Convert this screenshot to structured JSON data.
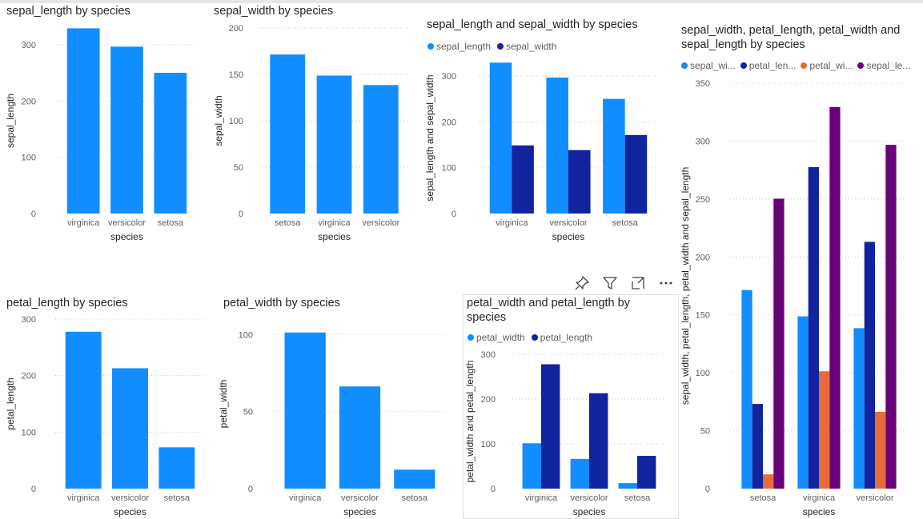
{
  "colors": {
    "c1": "#118DFF",
    "c2": "#12239E",
    "c3": "#E66C37",
    "c4": "#6B007B"
  },
  "header_icons": [
    "pin-icon",
    "filter-icon",
    "focus-mode-icon",
    "more-options-icon"
  ],
  "chart_data": [
    {
      "id": "v1",
      "type": "bar",
      "title": "sepal_length by species",
      "xlabel": "species",
      "ylabel": "sepal_length",
      "categories": [
        "virginica",
        "versicolor",
        "setosa"
      ],
      "series": [
        {
          "name": "sepal_length",
          "values": [
            329.4,
            296.8,
            250.3
          ]
        }
      ],
      "ylim": [
        0,
        330
      ],
      "yticks": [
        0,
        100,
        200,
        300
      ],
      "grid": true
    },
    {
      "id": "v2",
      "type": "bar",
      "title": "sepal_width by species",
      "xlabel": "species",
      "ylabel": "sepal_width",
      "categories": [
        "setosa",
        "virginica",
        "versicolor"
      ],
      "series": [
        {
          "name": "sepal_width",
          "values": [
            171.4,
            148.7,
            138.5
          ]
        }
      ],
      "ylim": [
        0,
        200
      ],
      "yticks": [
        0,
        50,
        100,
        150,
        200
      ],
      "grid": true
    },
    {
      "id": "v3",
      "type": "bar",
      "title": "sepal_length and sepal_width by species",
      "xlabel": "species",
      "ylabel": "sepal_length and sepal_width",
      "categories": [
        "virginica",
        "versicolor",
        "setosa"
      ],
      "series": [
        {
          "name": "sepal_length",
          "values": [
            329.4,
            296.8,
            250.3
          ]
        },
        {
          "name": "sepal_width",
          "values": [
            148.7,
            138.5,
            171.4
          ]
        }
      ],
      "ylim": [
        0,
        330
      ],
      "yticks": [
        0,
        100,
        200,
        300
      ],
      "grid": true,
      "legend": "top-left"
    },
    {
      "id": "v4",
      "type": "bar",
      "title": "sepal_width, petal_length, petal_width and sepal_length by species",
      "xlabel": "species",
      "ylabel": "sepal_width, petal_length, petal_width and sepal_length",
      "categories": [
        "setosa",
        "virginica",
        "versicolor"
      ],
      "series": [
        {
          "name": "sepal_wi...",
          "values": [
            171.4,
            148.7,
            138.5
          ]
        },
        {
          "name": "petal_len...",
          "values": [
            73.1,
            277.6,
            213.0
          ]
        },
        {
          "name": "petal_wi...",
          "values": [
            12.3,
            101.3,
            66.3
          ]
        },
        {
          "name": "sepal_le...",
          "values": [
            250.3,
            329.4,
            296.8
          ]
        }
      ],
      "ylim": [
        0,
        350
      ],
      "yticks": [
        0,
        50,
        100,
        150,
        200,
        250,
        300,
        350
      ],
      "grid": true,
      "legend": "top-left"
    },
    {
      "id": "v5",
      "type": "bar",
      "title": "petal_length by species",
      "xlabel": "species",
      "ylabel": "petal_length",
      "categories": [
        "virginica",
        "versicolor",
        "setosa"
      ],
      "series": [
        {
          "name": "petal_length",
          "values": [
            277.6,
            213.0,
            73.1
          ]
        }
      ],
      "ylim": [
        0,
        300
      ],
      "yticks": [
        0,
        100,
        200,
        300
      ],
      "grid": true
    },
    {
      "id": "v6",
      "type": "bar",
      "title": "petal_width by species",
      "xlabel": "species",
      "ylabel": "petal_width",
      "categories": [
        "virginica",
        "versicolor",
        "setosa"
      ],
      "series": [
        {
          "name": "petal_width",
          "values": [
            101.3,
            66.3,
            12.3
          ]
        }
      ],
      "ylim": [
        0,
        110
      ],
      "yticks": [
        0,
        50,
        100
      ],
      "grid": true
    },
    {
      "id": "v7",
      "type": "bar",
      "title": "petal_width and petal_length by species",
      "xlabel": "species",
      "ylabel": "petal_width and petal_length",
      "categories": [
        "virginica",
        "versicolor",
        "setosa"
      ],
      "series": [
        {
          "name": "petal_width",
          "values": [
            101.3,
            66.3,
            12.3
          ]
        },
        {
          "name": "petal_length",
          "values": [
            277.6,
            213.0,
            73.1
          ]
        }
      ],
      "ylim": [
        0,
        300
      ],
      "yticks": [
        0,
        100,
        200,
        300
      ],
      "grid": true,
      "legend": "top-left"
    }
  ]
}
